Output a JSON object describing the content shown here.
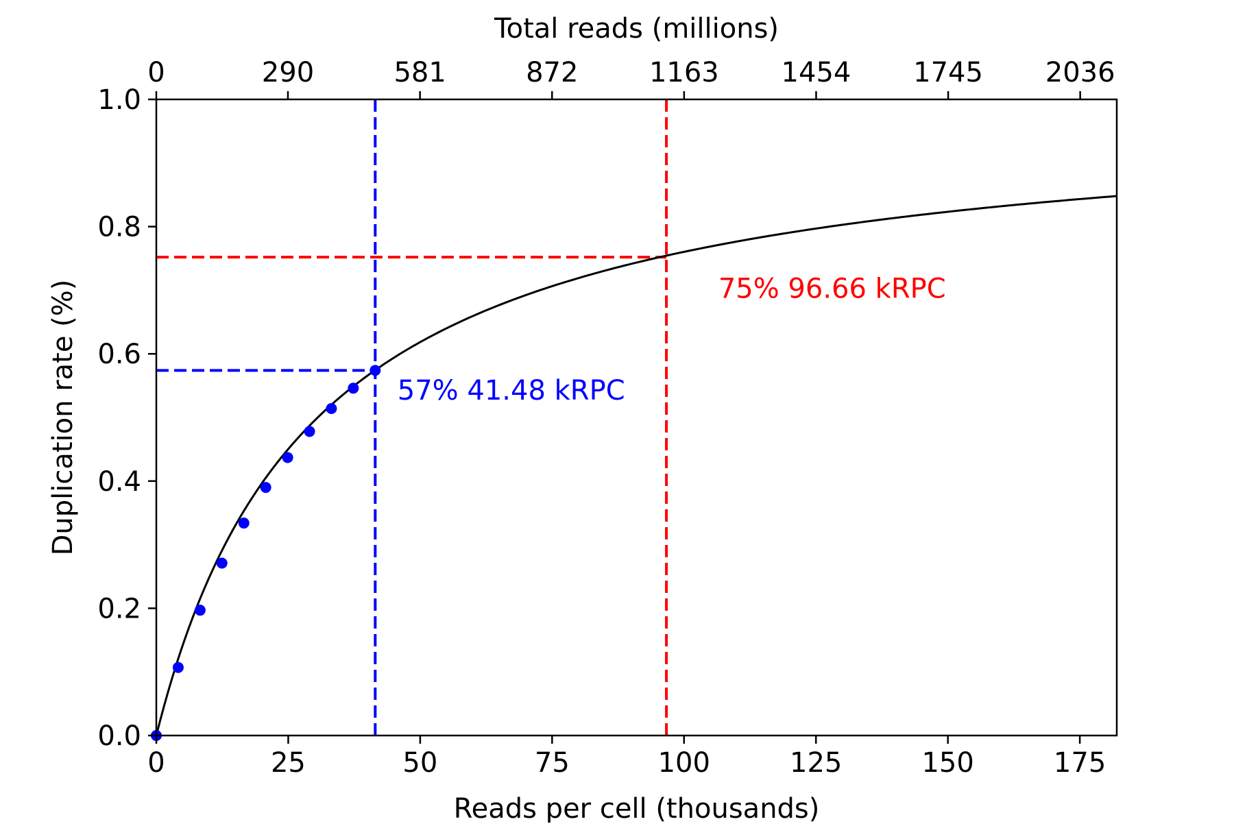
{
  "chart_data": {
    "type": "line",
    "title": "",
    "xlabel": "Reads per cell (thousands)",
    "ylabel": "Duplication rate (%)",
    "x2label": "Total reads (millions)",
    "xlim": [
      0,
      182
    ],
    "ylim": [
      0,
      1.0
    ],
    "x_ticks": [
      0,
      25,
      50,
      75,
      100,
      125,
      150,
      175
    ],
    "x_tick_labels": [
      "0",
      "25",
      "50",
      "75",
      "100",
      "125",
      "150",
      "175"
    ],
    "y_ticks": [
      0.0,
      0.2,
      0.4,
      0.6,
      0.8,
      1.0
    ],
    "y_tick_labels": [
      "0.0",
      "0.2",
      "0.4",
      "0.6",
      "0.8",
      "1.0"
    ],
    "x2_ticks": [
      0,
      24.94,
      49.97,
      74.99,
      100.01,
      125.03,
      150.05,
      175.07
    ],
    "x2_tick_labels": [
      "0",
      "290",
      "581",
      "872",
      "1163",
      "1454",
      "1745",
      "2036"
    ],
    "grid": false,
    "series": [
      {
        "style": "scatter",
        "color": "#0000ff",
        "x": [
          0,
          4.15,
          8.3,
          12.44,
          16.59,
          20.74,
          24.89,
          29.04,
          33.18,
          37.33,
          41.48
        ],
        "y": [
          0.0,
          0.107,
          0.197,
          0.271,
          0.334,
          0.39,
          0.437,
          0.478,
          0.514,
          0.546,
          0.574
        ]
      },
      {
        "style": "line",
        "color": "#000000",
        "model": "saturation",
        "a": 0.9868,
        "b": 29.78,
        "x_range": [
          0,
          182
        ]
      }
    ],
    "annotations": [
      {
        "text": "57% 41.48 kRPC",
        "color": "#0000ff",
        "x": 41.48,
        "y": 0.574,
        "label_x": 45.7,
        "label_y": 0.543
      },
      {
        "text": "75% 96.66 kRPC",
        "color": "#ff0000",
        "x": 96.66,
        "y": 0.752,
        "label_x": 106.5,
        "label_y": 0.703
      }
    ]
  }
}
